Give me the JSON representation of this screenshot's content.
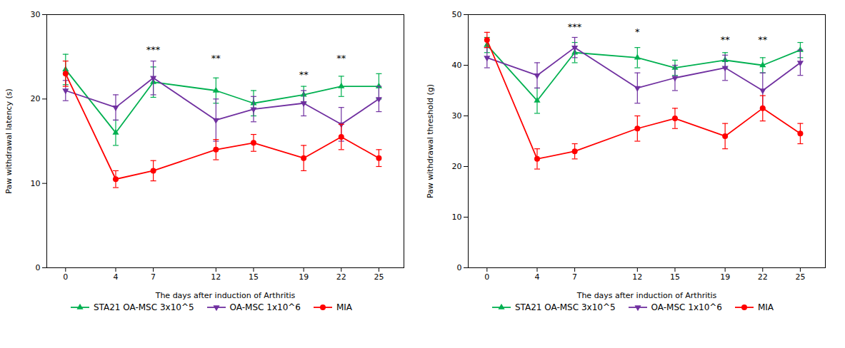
{
  "chart_data": [
    {
      "type": "line",
      "x": [
        0,
        4,
        7,
        12,
        15,
        19,
        22,
        25
      ],
      "xlabel": "The days after induction of Arthritis",
      "ylabel": "Paw withdrawal latency (s)",
      "xlim": [
        -1.5,
        27
      ],
      "xticks": [
        0,
        4,
        7,
        12,
        15,
        19,
        22,
        25
      ],
      "ylim": [
        0,
        30
      ],
      "yticks": [
        0,
        10,
        20,
        30
      ],
      "legend": "bottom",
      "series": [
        {
          "name": "STA21 OA-MSC 3x10^5",
          "color": "#00b050",
          "marker": "triangle-up",
          "values": [
            23.5,
            16.0,
            22.0,
            21.0,
            19.5,
            20.5,
            21.5,
            21.5
          ],
          "errors": [
            1.8,
            1.5,
            1.8,
            1.5,
            1.5,
            1.0,
            1.2,
            1.5
          ]
        },
        {
          "name": "OA-MSC 1x10^6",
          "color": "#7030a0",
          "marker": "triangle-down",
          "values": [
            21.0,
            19.0,
            22.5,
            17.5,
            18.8,
            19.5,
            17.0,
            20.0
          ],
          "errors": [
            1.2,
            1.5,
            2.0,
            2.5,
            1.5,
            1.5,
            2.0,
            1.5
          ]
        },
        {
          "name": "MIA",
          "color": "#ff0000",
          "marker": "circle",
          "values": [
            23.0,
            10.5,
            11.5,
            14.0,
            14.8,
            13.0,
            15.5,
            13.0
          ],
          "errors": [
            1.5,
            1.0,
            1.2,
            1.2,
            1.0,
            1.5,
            1.5,
            1.0
          ]
        }
      ],
      "annotations": [
        {
          "x": 7,
          "y": 25.5,
          "text": "***"
        },
        {
          "x": 12,
          "y": 24.5,
          "text": "**"
        },
        {
          "x": 19,
          "y": 22.5,
          "text": "**"
        },
        {
          "x": 22,
          "y": 24.5,
          "text": "**"
        }
      ]
    },
    {
      "type": "line",
      "x": [
        0,
        4,
        7,
        12,
        15,
        19,
        22,
        25
      ],
      "xlabel": "The days after induction of Arthritis",
      "ylabel": "Paw withdrawal threshold (g)",
      "xlim": [
        -1.5,
        27
      ],
      "xticks": [
        0,
        4,
        7,
        12,
        15,
        19,
        22,
        25
      ],
      "ylim": [
        0,
        50
      ],
      "yticks": [
        0,
        10,
        20,
        30,
        40,
        50
      ],
      "legend": "bottom",
      "series": [
        {
          "name": "STA21 OA-MSC 3x10^5",
          "color": "#00b050",
          "marker": "triangle-up",
          "values": [
            44.0,
            33.0,
            42.5,
            41.5,
            39.5,
            41.0,
            40.0,
            43.0
          ],
          "errors": [
            1.5,
            2.5,
            2.0,
            2.0,
            1.5,
            1.5,
            1.5,
            1.5
          ]
        },
        {
          "name": "OA-MSC 1x10^6",
          "color": "#7030a0",
          "marker": "triangle-down",
          "values": [
            41.5,
            38.0,
            43.5,
            35.5,
            37.5,
            39.5,
            35.0,
            40.5
          ],
          "errors": [
            2.0,
            2.5,
            2.0,
            3.0,
            2.5,
            2.5,
            3.5,
            2.5
          ]
        },
        {
          "name": "MIA",
          "color": "#ff0000",
          "marker": "circle",
          "values": [
            45.0,
            21.5,
            23.0,
            27.5,
            29.5,
            26.0,
            31.5,
            26.5
          ],
          "errors": [
            1.5,
            2.0,
            1.5,
            2.5,
            2.0,
            2.5,
            2.5,
            2.0
          ]
        }
      ],
      "annotations": [
        {
          "x": 7,
          "y": 47.0,
          "text": "***"
        },
        {
          "x": 12,
          "y": 46.0,
          "text": "*"
        },
        {
          "x": 19,
          "y": 44.5,
          "text": "**"
        },
        {
          "x": 22,
          "y": 44.5,
          "text": "**"
        }
      ]
    }
  ]
}
